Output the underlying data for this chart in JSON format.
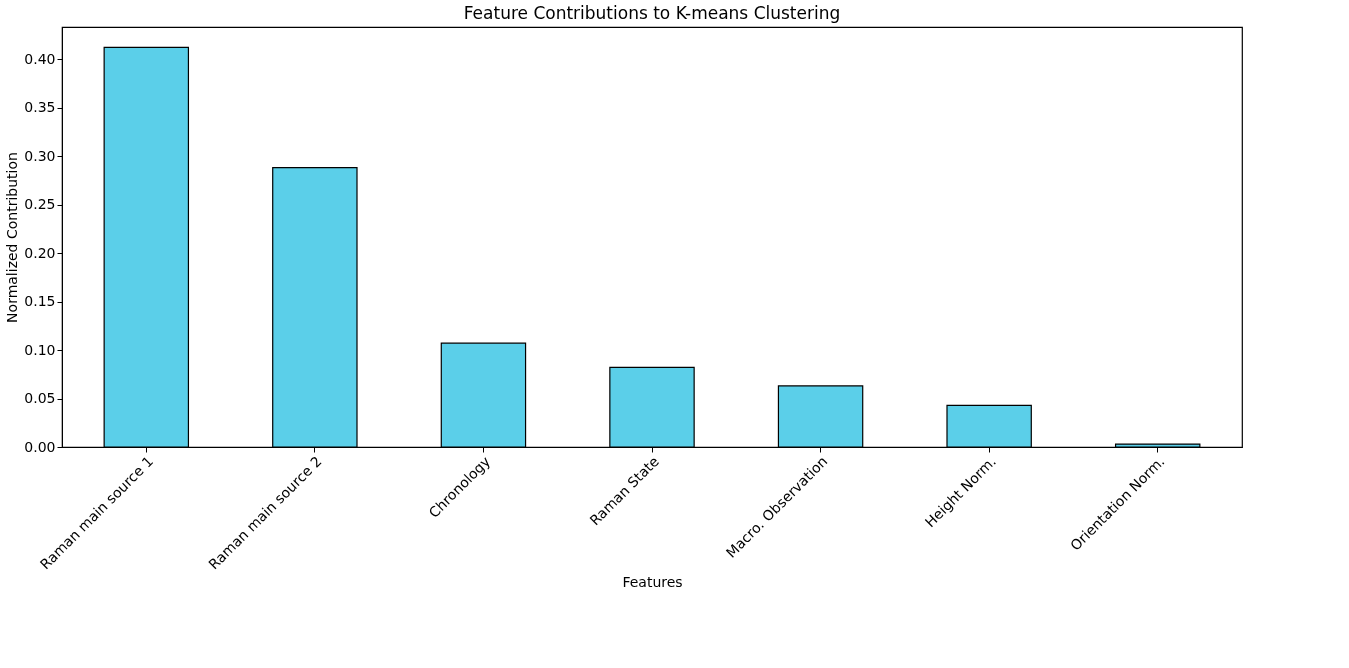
{
  "chart_data": {
    "type": "bar",
    "title": "Feature Contributions to K-means Clustering",
    "xlabel": "Features",
    "ylabel": "Normalized Contribution",
    "categories": [
      "Raman main source 1",
      "Raman main source 2",
      "Chronology",
      "Raman State",
      "Macro. Observation",
      "Height Norm.",
      "Orientation Norm."
    ],
    "values": [
      0.412,
      0.288,
      0.107,
      0.082,
      0.063,
      0.043,
      0.003
    ],
    "color": "#5bcfe9",
    "ylim": [
      0,
      0.433
    ],
    "yticks": [
      {
        "value": 0,
        "label": "0.00"
      },
      0.05,
      {
        "value": 0.1,
        "label": "0.10"
      },
      0.15,
      {
        "value": 0.2,
        "label": "0.20"
      },
      0.25,
      {
        "value": 0.3,
        "label": "0.30"
      },
      0.35,
      {
        "value": 0.4,
        "label": "0.40"
      }
    ],
    "grid": false
  }
}
